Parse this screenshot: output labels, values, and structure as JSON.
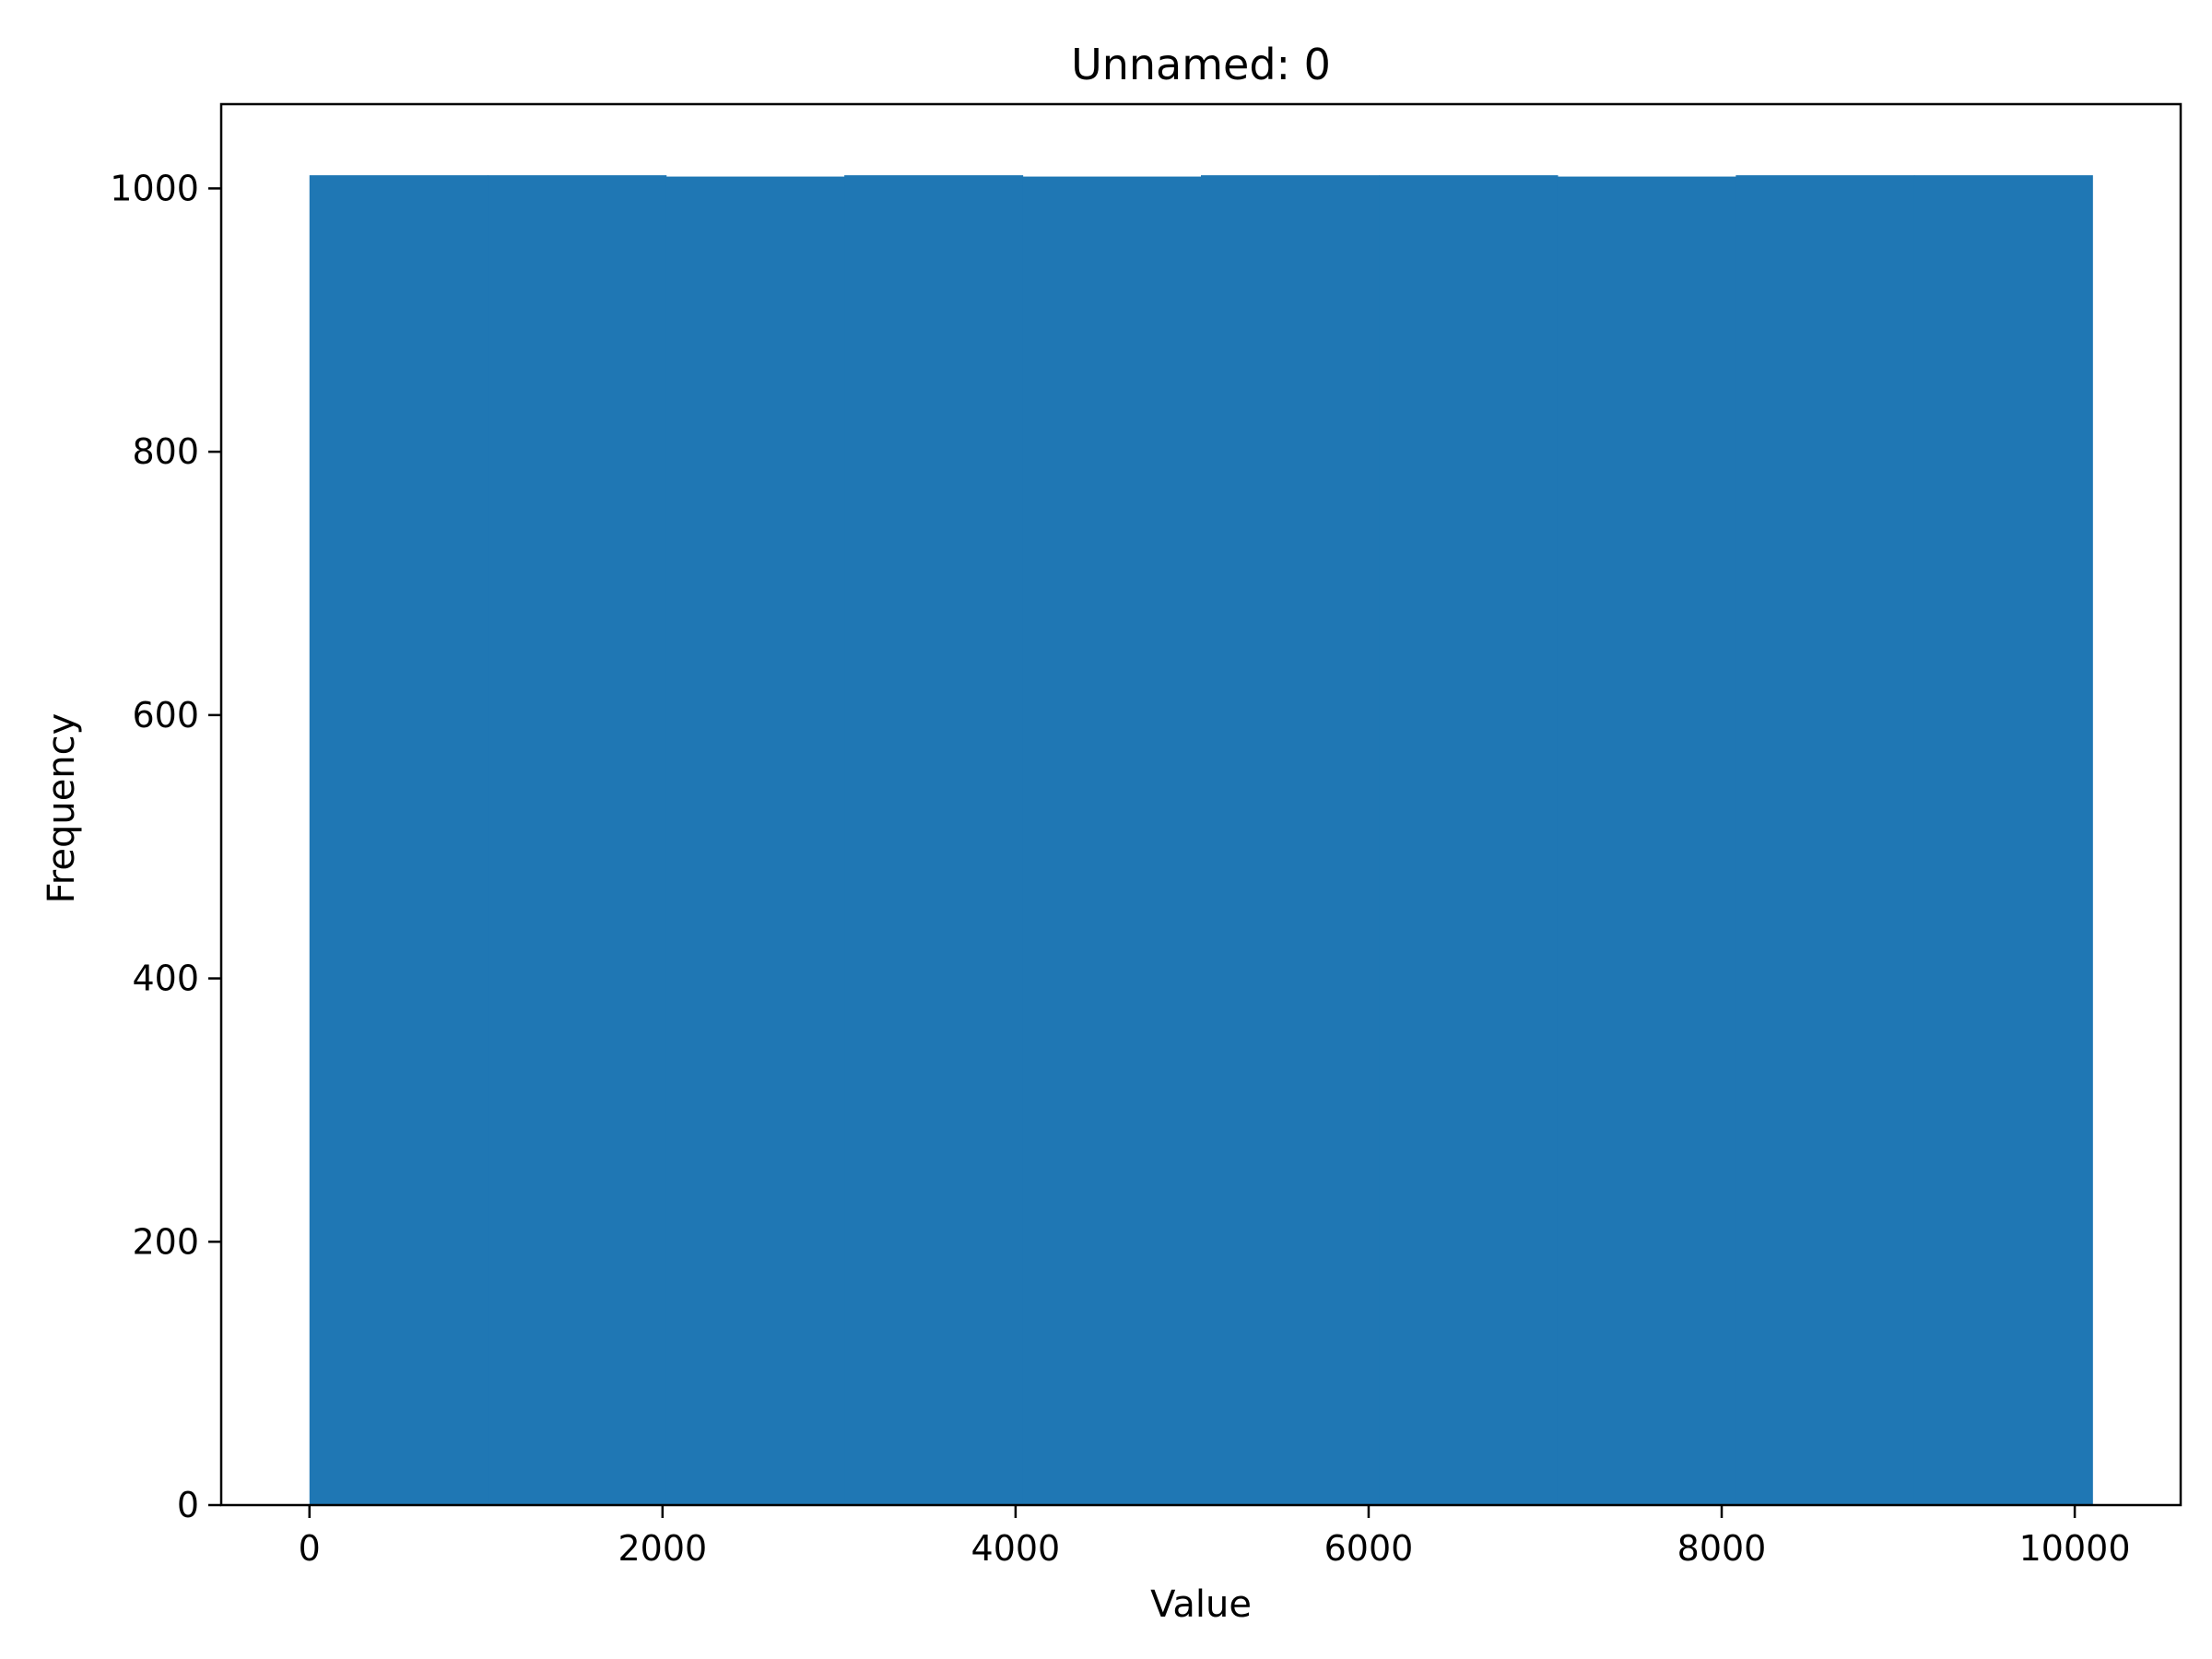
{
  "chart_data": {
    "type": "bar",
    "histogram": true,
    "title": "Unnamed: 0",
    "xlabel": "Value",
    "ylabel": "Frequency",
    "xlim": [
      -500,
      10600
    ],
    "ylim": [
      0,
      1064
    ],
    "xticks": [
      0,
      2000,
      4000,
      6000,
      8000,
      10000
    ],
    "yticks": [
      0,
      200,
      400,
      600,
      800,
      1000
    ],
    "bin_edges": [
      0,
      1010,
      2020,
      3030,
      4040,
      5050,
      6060,
      7070,
      8080,
      9090,
      10100
    ],
    "values": [
      1010,
      1010,
      1009,
      1010,
      1009,
      1010,
      1010,
      1009,
      1010,
      1010
    ],
    "bar_color": "#1f77b4",
    "grid": false,
    "legend": "none"
  }
}
